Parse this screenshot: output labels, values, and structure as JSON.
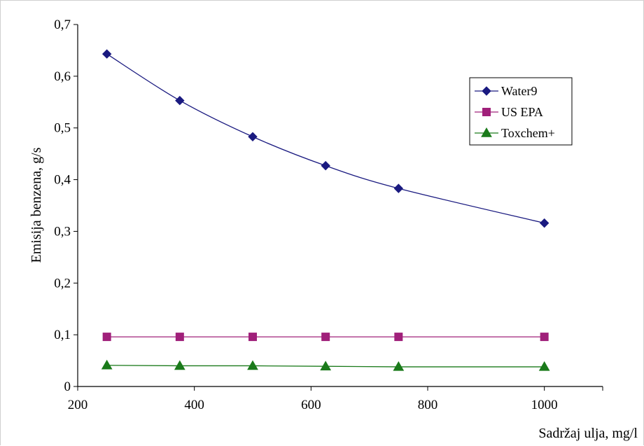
{
  "chart_data": {
    "type": "line",
    "title": "",
    "xlabel": "Sadržaj ulja, mg/l",
    "ylabel": "Emisija benzena, g/s",
    "xlim": [
      200,
      1100
    ],
    "ylim": [
      0,
      0.7
    ],
    "x_ticks": [
      200,
      400,
      600,
      800,
      1000
    ],
    "x_tick_labels": [
      "200",
      "400",
      "600",
      "800",
      "1000"
    ],
    "y_ticks": [
      0,
      0.1,
      0.2,
      0.3,
      0.4,
      0.5,
      0.6,
      0.7
    ],
    "y_tick_labels": [
      "0",
      "0,1",
      "0,2",
      "0,3",
      "0,4",
      "0,5",
      "0,6",
      "0,7"
    ],
    "grid": false,
    "legend_position": "top-right",
    "x": [
      250,
      375,
      500,
      625,
      750,
      1000
    ],
    "series": [
      {
        "name": "Water9",
        "values": [
          0.643,
          0.553,
          0.483,
          0.427,
          0.383,
          0.316
        ],
        "color": "#1a1a80",
        "marker": "diamond",
        "smooth": true
      },
      {
        "name": "US EPA",
        "values": [
          0.096,
          0.096,
          0.096,
          0.096,
          0.096,
          0.096
        ],
        "color": "#a0207a",
        "marker": "square",
        "smooth": false
      },
      {
        "name": "Toxchem+",
        "values": [
          0.041,
          0.04,
          0.04,
          0.039,
          0.038,
          0.038
        ],
        "color": "#1a7a1a",
        "marker": "triangle",
        "smooth": false
      }
    ]
  }
}
